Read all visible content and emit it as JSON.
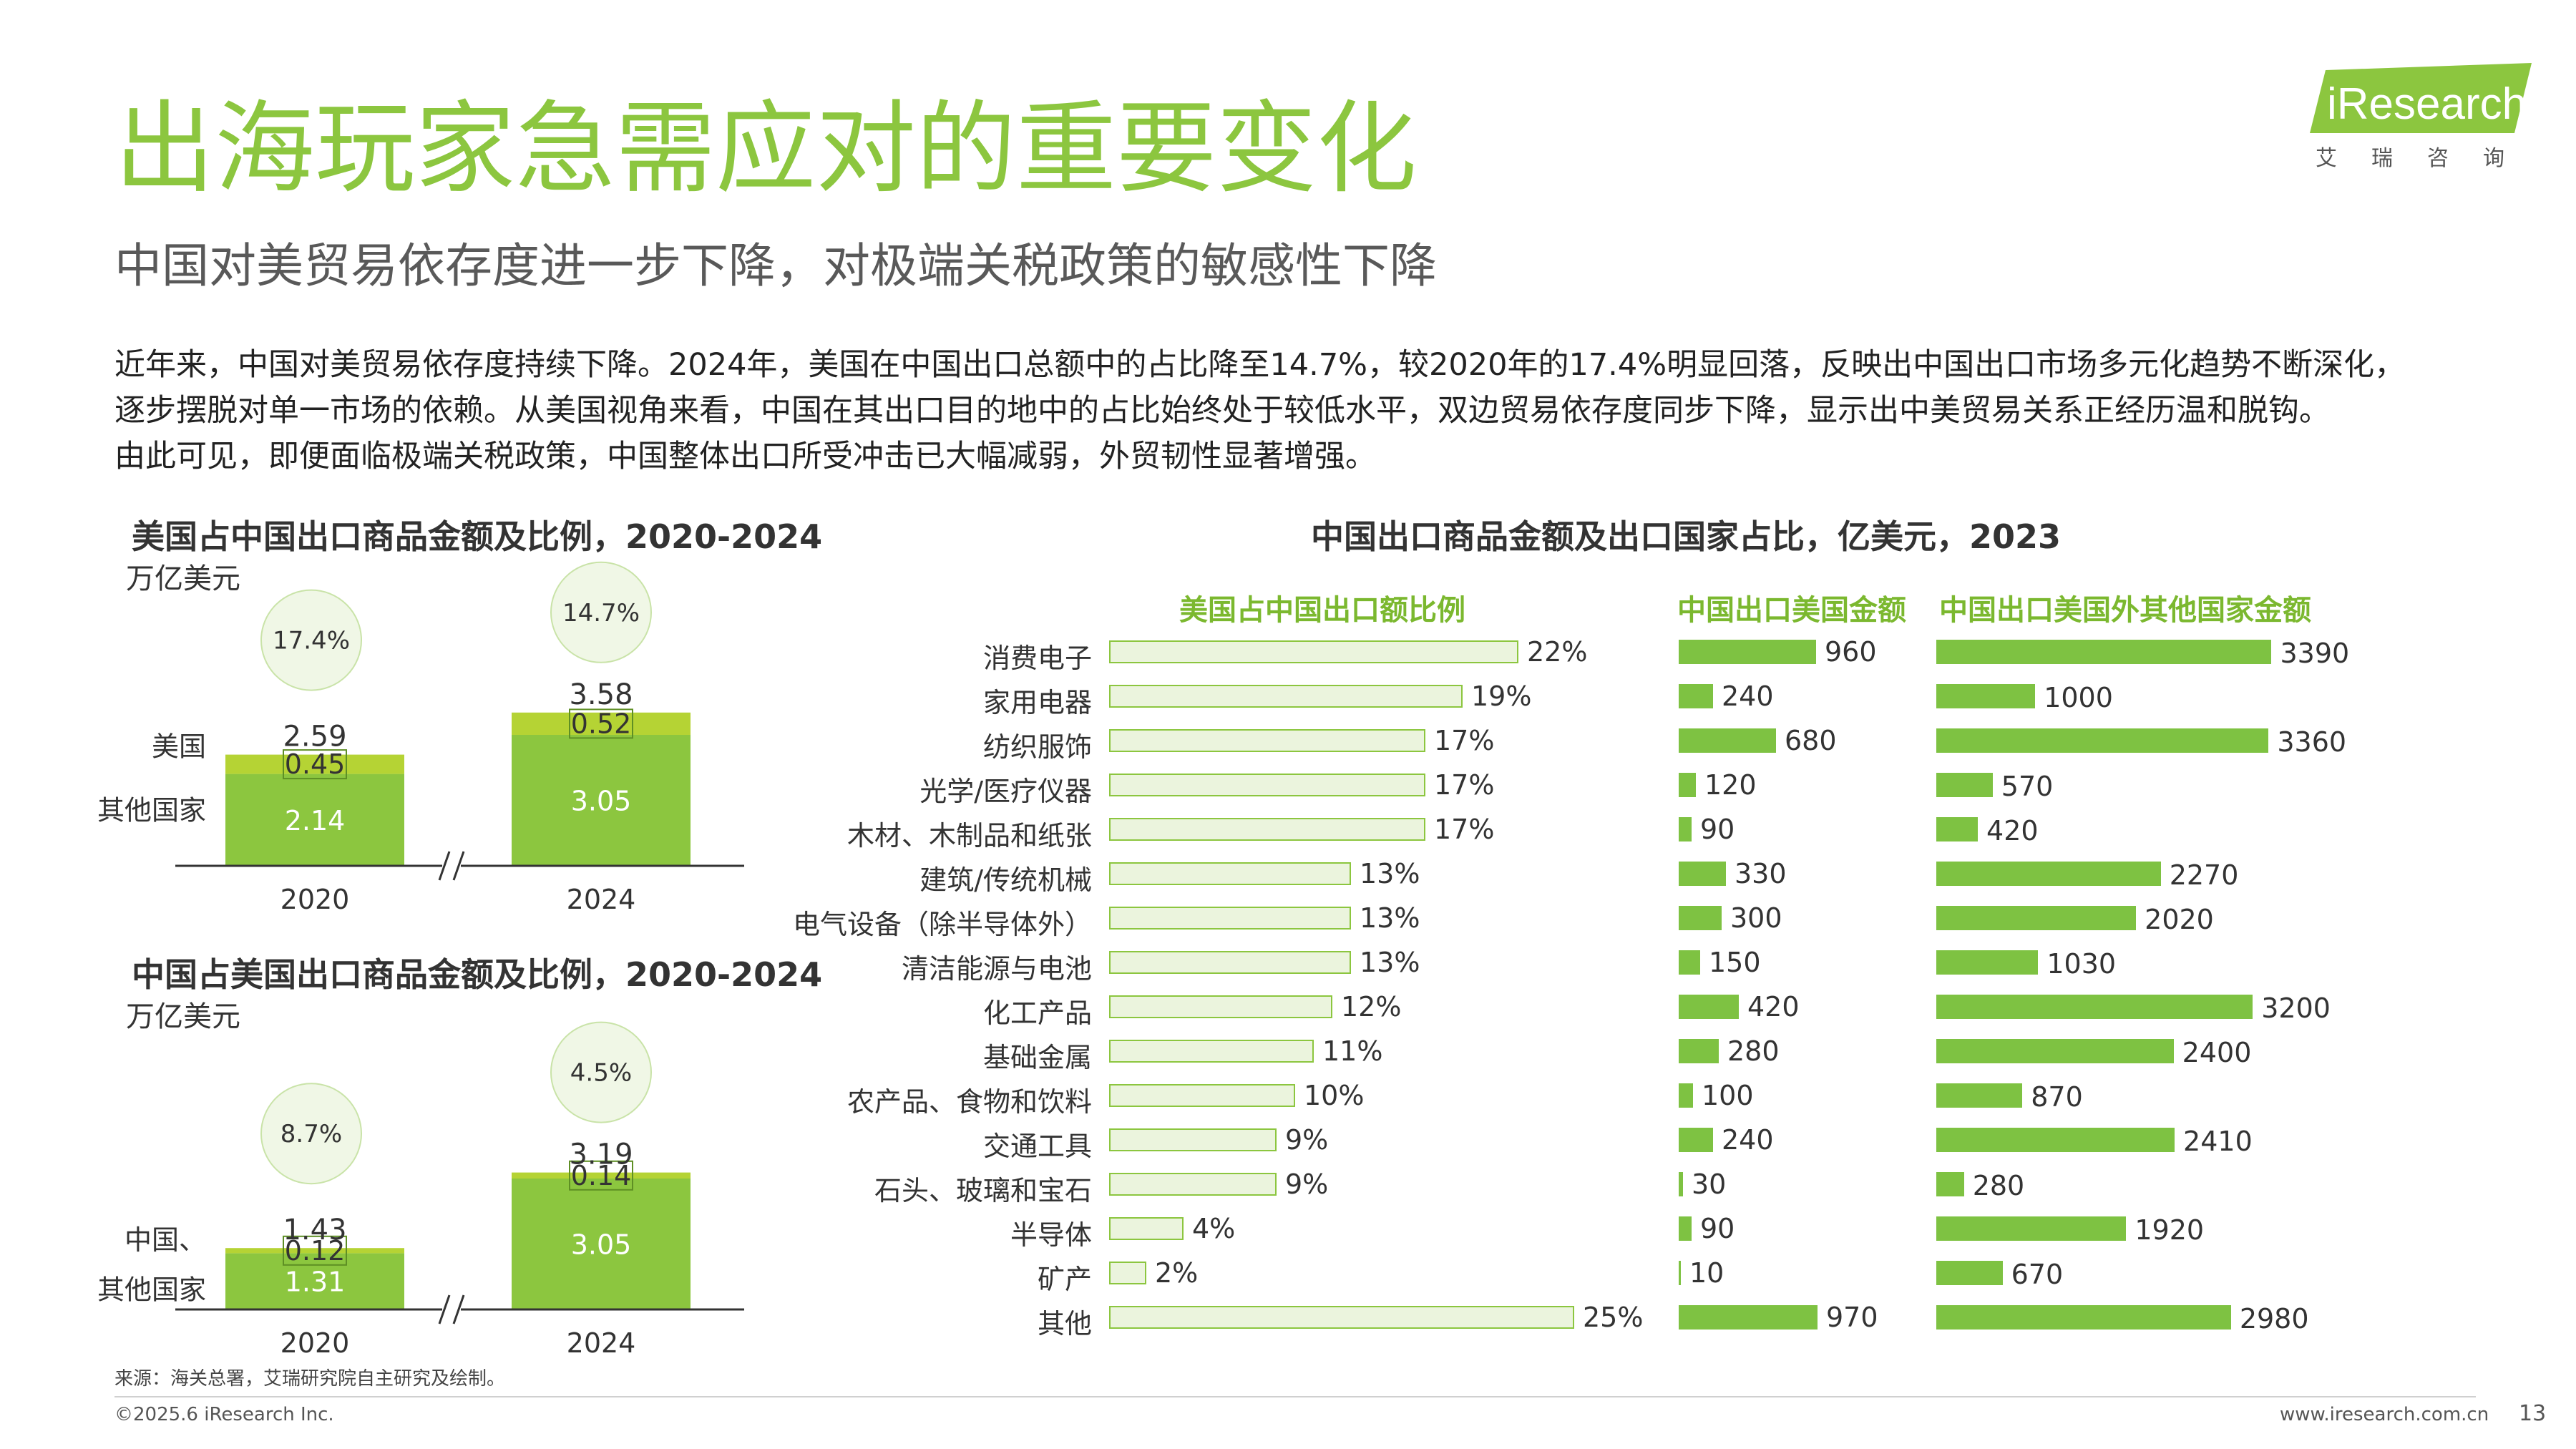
{
  "header": {
    "title": "出海玩家急需应对的重要变化",
    "subtitle": "中国对美贸易依存度进一步下降，对极端关税政策的敏感性下降",
    "intro_lines": [
      "近年来，中国对美贸易依存度持续下降。2024年，美国在中国出口总额中的占比降至14.7%，较2020年的17.4%明显回落，反映出中国出口市场多元化趋势不断深化，",
      "逐步摆脱对单一市场的依赖。从美国视角来看，中国在其出口目的地中的占比始终处于较低水平，双边贸易依存度同步下降，显示出中美贸易关系正经历温和脱钩。",
      "由此可见，即便面临极端关税政策，中国整体出口所受冲击已大幅减弱，外贸韧性显著增强。"
    ]
  },
  "logo": {
    "text": "iResearch",
    "sub": "艾瑞咨询"
  },
  "chart_data": [
    {
      "type": "bar",
      "stacked": true,
      "title": "美国占中国出口商品金额及比例，2020-2024",
      "unit": "万亿美元",
      "categories": [
        "2020",
        "2024"
      ],
      "series": [
        {
          "name": "其他国家",
          "values": [
            2.14,
            3.05
          ]
        },
        {
          "name": "美国",
          "values": [
            0.45,
            0.52
          ]
        }
      ],
      "totals": [
        "2.59",
        "3.58"
      ],
      "other_labels": [
        "2.14",
        "3.05"
      ],
      "top_labels": [
        "0.45",
        "0.52"
      ],
      "shares": [
        "17.4%",
        "14.7%"
      ],
      "axis_break": true,
      "colors": {
        "bottom": "#8cc63f",
        "top": "#b5d334"
      }
    },
    {
      "type": "bar",
      "stacked": true,
      "title": "中国占美国出口商品金额及比例，2020-2024",
      "unit": "万亿美元",
      "categories": [
        "2020",
        "2024"
      ],
      "series": [
        {
          "name": "其他国家",
          "values": [
            1.31,
            3.05
          ]
        },
        {
          "name": "中国、",
          "values": [
            0.12,
            0.14
          ]
        }
      ],
      "totals": [
        "1.43",
        "3.19"
      ],
      "other_labels": [
        "1.31",
        "3.05"
      ],
      "top_labels": [
        "0.12",
        "0.14"
      ],
      "shares": [
        "8.7%",
        "4.5%"
      ],
      "axis_break": true,
      "colors": {
        "bottom": "#8cc63f",
        "top": "#b5d334"
      }
    },
    {
      "type": "bar",
      "orientation": "horizontal",
      "title": "中国出口商品金额及出口国家占比，亿美元，2023",
      "categories": [
        "消费电子",
        "家用电器",
        "纺织服饰",
        "光学/医疗仪器",
        "木材、木制品和纸张",
        "建筑/传统机械",
        "电气设备（除半导体外）",
        "清洁能源与电池",
        "化工产品",
        "基础金属",
        "农产品、食物和饮料",
        "交通工具",
        "石头、玻璃和宝石",
        "半导体",
        "矿产",
        "其他"
      ],
      "series": [
        {
          "name": "美国占中国出口额比例",
          "values": [
            22,
            19,
            17,
            17,
            17,
            13,
            13,
            13,
            12,
            11,
            10,
            9,
            9,
            4,
            2,
            25
          ],
          "unit": "%"
        },
        {
          "name": "中国出口美国金额",
          "values": [
            960,
            240,
            680,
            120,
            90,
            330,
            300,
            150,
            420,
            280,
            100,
            240,
            30,
            90,
            10,
            970
          ]
        },
        {
          "name": "中国出口美国外其他国家金额",
          "values": [
            3390,
            1000,
            3360,
            570,
            420,
            2270,
            2020,
            1030,
            3200,
            2400,
            870,
            2410,
            280,
            1920,
            670,
            2980
          ]
        }
      ]
    }
  ],
  "footer": {
    "source": "来源：海关总署，艾瑞研究院自主研究及绘制。",
    "copyright": "©2025.6 iResearch Inc.",
    "website": "www.iresearch.com.cn",
    "page": "13"
  }
}
